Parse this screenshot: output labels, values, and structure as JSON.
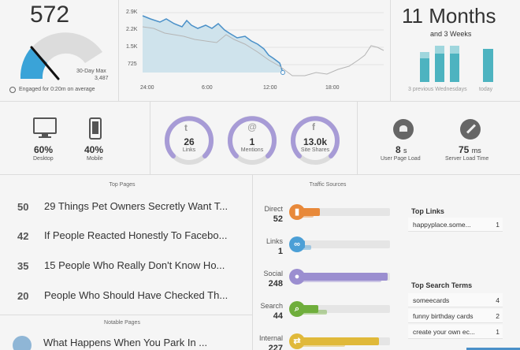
{
  "concurrents": {
    "value": "572",
    "max_label": "30-Day Max",
    "max_value": "3,487",
    "engaged_text": "Engaged for 0:20m on average",
    "gauge_fraction": 0.16
  },
  "trend_chart": {
    "y_ticks": [
      "2.9K",
      "2.2K",
      "1.5K",
      "725"
    ],
    "x_ticks": [
      "24:00",
      "6:00",
      "12:00",
      "18:00"
    ]
  },
  "record": {
    "value": "11 Months",
    "sub": "and 3 Weeks",
    "left_caption": "3 previous Wednesdays",
    "right_caption": "today"
  },
  "devices": [
    {
      "value": "60%",
      "label": "Desktop",
      "icon": "desktop-icon"
    },
    {
      "value": "40%",
      "label": "Mobile",
      "icon": "mobile-icon"
    }
  ],
  "social": [
    {
      "value": "26",
      "label": "Links",
      "icon": "twitter-icon",
      "fraction": 0.72
    },
    {
      "value": "1",
      "label": "Mentions",
      "icon": "at-icon",
      "fraction": 0.72
    },
    {
      "value": "13.0k",
      "label": "Site Shares",
      "icon": "facebook-icon",
      "fraction": 0.72
    }
  ],
  "performance": [
    {
      "value": "8",
      "unit": "s",
      "label": "User Page Load",
      "icon": "snail-icon"
    },
    {
      "value": "75",
      "unit": "ms",
      "label": "Server Load Time",
      "icon": "wrench-icon"
    }
  ],
  "top_pages": {
    "title": "Top Pages",
    "rows": [
      {
        "num": "50",
        "title": "29 Things Pet Owners Secretly Want T..."
      },
      {
        "num": "42",
        "title": "If People Reacted Honestly To Facebo..."
      },
      {
        "num": "35",
        "title": "15 People Who Really Don't Know Ho..."
      },
      {
        "num": "20",
        "title": "People Who Should Have Checked Th..."
      }
    ]
  },
  "notable_pages": {
    "title": "Notable Pages",
    "rows": [
      {
        "title": "What Happens When You Park In ..."
      }
    ]
  },
  "traffic_sources": {
    "title": "Traffic Sources",
    "rows": [
      {
        "label": "Direct",
        "value": "52",
        "icon": "bookmark-icon",
        "color": "#e8893a",
        "fraction": 0.22,
        "light_fraction": 0.15
      },
      {
        "label": "Links",
        "value": "1",
        "icon": "link-icon",
        "color": "#4b9fd6",
        "fraction": 0.05,
        "light_fraction": 0.12
      },
      {
        "label": "Social",
        "value": "248",
        "icon": "chat-icon",
        "color": "#9b8ed0",
        "fraction": 0.97,
        "light_fraction": 0.9
      },
      {
        "label": "Search",
        "value": "44",
        "icon": "search-icon",
        "color": "#6fae3c",
        "fraction": 0.2,
        "light_fraction": 0.3
      },
      {
        "label": "Internal",
        "value": "227",
        "icon": "arrows-icon",
        "color": "#e0b93a",
        "fraction": 0.88,
        "light_fraction": 0.5
      }
    ]
  },
  "top_links": {
    "title": "Top Links",
    "rows": [
      {
        "text": "happyplace.some...",
        "count": "1"
      }
    ]
  },
  "top_search_terms": {
    "title": "Top Search Terms",
    "rows": [
      {
        "text": "someecards",
        "count": "4"
      },
      {
        "text": "funny birthday cards",
        "count": "2"
      },
      {
        "text": "create your own ec...",
        "count": "1"
      }
    ]
  },
  "colors": {
    "chart_today": "#4a90c8",
    "chart_history": "#b5b5b5",
    "chart_fill": "#cfe3ec",
    "ring": "#a79bd6",
    "gauge": "#3aa3d8",
    "bar_teal": "#4db3c0"
  }
}
